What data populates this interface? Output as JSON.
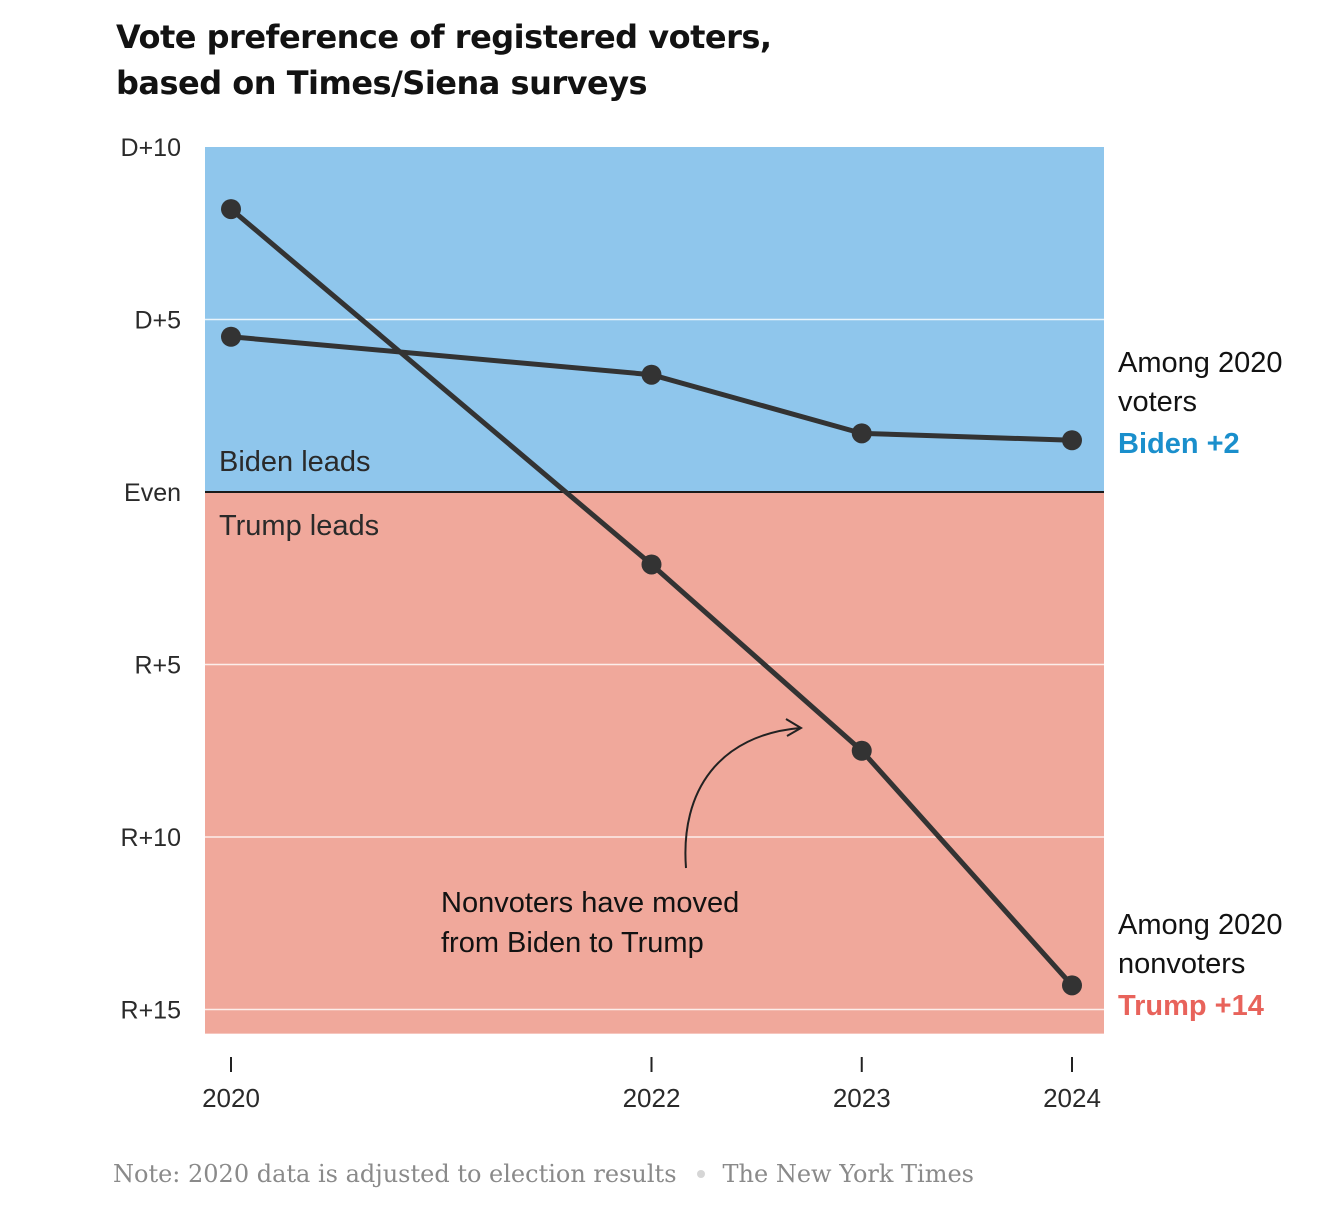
{
  "title": {
    "line1": "Vote preference of registered voters,",
    "line2": "based on Times/Siena surveys"
  },
  "colors": {
    "biden_region": "#8fc6ec",
    "trump_region": "#f0a89b",
    "line": "#333333",
    "biden_label": "#1a8fcc",
    "trump_label": "#e8635b"
  },
  "chart_data": {
    "type": "line",
    "x": [
      2020,
      2022,
      2023,
      2024
    ],
    "x_tick_labels": [
      "2020",
      "2022",
      "2023",
      "2024"
    ],
    "y_axis": {
      "min": -15.7,
      "max": 10,
      "ticks": [
        10,
        5,
        0,
        -5,
        -10,
        -15
      ],
      "tick_labels": [
        "D+10",
        "D+5",
        "Even",
        "R+5",
        "R+10",
        "R+15"
      ],
      "grid": true
    },
    "regions": {
      "biden_label": "Biden leads",
      "trump_label": "Trump leads"
    },
    "series": [
      {
        "key": "voters",
        "values": [
          4.5,
          3.4,
          1.7,
          1.5
        ],
        "label_line1": "Among 2020",
        "label_line2": "voters",
        "label_result": "Biden +2"
      },
      {
        "key": "nonvoters",
        "values": [
          8.2,
          -2.1,
          -7.5,
          -14.3
        ],
        "label_line1": "Among 2020",
        "label_line2": "nonvoters",
        "label_result": "Trump +14"
      }
    ],
    "annotation": {
      "line1": "Nonvoters have moved",
      "line2": "from Biden to Trump"
    }
  },
  "footer": {
    "note": "Note: 2020 data is adjusted to election results",
    "source": "The New York Times"
  }
}
